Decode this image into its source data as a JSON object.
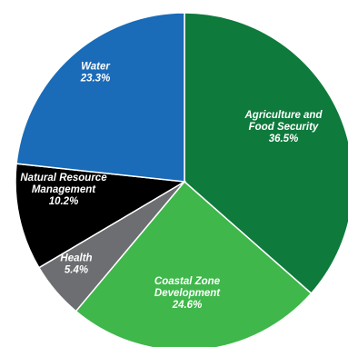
{
  "chart_data": {
    "type": "pie",
    "title": "",
    "legend": "none",
    "slices": [
      {
        "label": [
          "Agriculture and",
          "Food Security"
        ],
        "value_label": "36.5%",
        "value": 36.5,
        "color": "#0e7a3c"
      },
      {
        "label": [
          "Coastal Zone",
          "Development"
        ],
        "value_label": "24.6%",
        "value": 24.6,
        "color": "#3fb74b"
      },
      {
        "label": [
          "Health"
        ],
        "value_label": "5.4%",
        "value": 5.4,
        "color": "#6d6e71"
      },
      {
        "label": [
          "Natural Resource",
          "Management"
        ],
        "value_label": "10.2%",
        "value": 10.2,
        "color": "#000000"
      },
      {
        "label": [
          "Water"
        ],
        "value_label": "23.3%",
        "value": 23.3,
        "color": "#1a6bb8"
      }
    ]
  }
}
